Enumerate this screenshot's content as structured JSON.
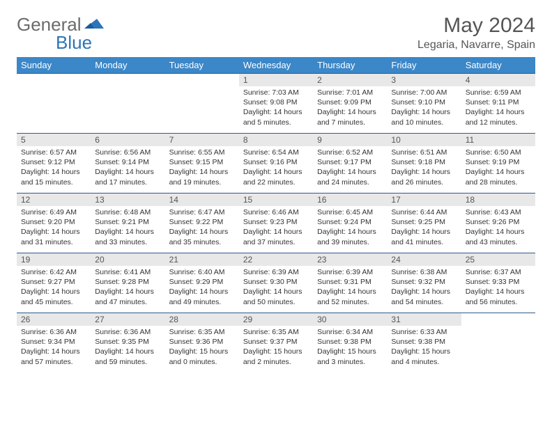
{
  "brand": {
    "part1": "General",
    "part2": "Blue"
  },
  "title": "May 2024",
  "location": "Legaria, Navarre, Spain",
  "weekdays": [
    "Sunday",
    "Monday",
    "Tuesday",
    "Wednesday",
    "Thursday",
    "Friday",
    "Saturday"
  ],
  "colors": {
    "header_bg": "#3b87c8",
    "header_text": "#ffffff",
    "daynum_bg": "#e8e8e8",
    "text": "#333333",
    "border": "#2d5a8a",
    "brand_grey": "#6b6b6b",
    "brand_blue": "#2d74b8"
  },
  "rows": [
    [
      null,
      null,
      null,
      {
        "n": "1",
        "sr": "7:03 AM",
        "ss": "9:08 PM",
        "dl": "14 hours and 5 minutes."
      },
      {
        "n": "2",
        "sr": "7:01 AM",
        "ss": "9:09 PM",
        "dl": "14 hours and 7 minutes."
      },
      {
        "n": "3",
        "sr": "7:00 AM",
        "ss": "9:10 PM",
        "dl": "14 hours and 10 minutes."
      },
      {
        "n": "4",
        "sr": "6:59 AM",
        "ss": "9:11 PM",
        "dl": "14 hours and 12 minutes."
      }
    ],
    [
      {
        "n": "5",
        "sr": "6:57 AM",
        "ss": "9:12 PM",
        "dl": "14 hours and 15 minutes."
      },
      {
        "n": "6",
        "sr": "6:56 AM",
        "ss": "9:14 PM",
        "dl": "14 hours and 17 minutes."
      },
      {
        "n": "7",
        "sr": "6:55 AM",
        "ss": "9:15 PM",
        "dl": "14 hours and 19 minutes."
      },
      {
        "n": "8",
        "sr": "6:54 AM",
        "ss": "9:16 PM",
        "dl": "14 hours and 22 minutes."
      },
      {
        "n": "9",
        "sr": "6:52 AM",
        "ss": "9:17 PM",
        "dl": "14 hours and 24 minutes."
      },
      {
        "n": "10",
        "sr": "6:51 AM",
        "ss": "9:18 PM",
        "dl": "14 hours and 26 minutes."
      },
      {
        "n": "11",
        "sr": "6:50 AM",
        "ss": "9:19 PM",
        "dl": "14 hours and 28 minutes."
      }
    ],
    [
      {
        "n": "12",
        "sr": "6:49 AM",
        "ss": "9:20 PM",
        "dl": "14 hours and 31 minutes."
      },
      {
        "n": "13",
        "sr": "6:48 AM",
        "ss": "9:21 PM",
        "dl": "14 hours and 33 minutes."
      },
      {
        "n": "14",
        "sr": "6:47 AM",
        "ss": "9:22 PM",
        "dl": "14 hours and 35 minutes."
      },
      {
        "n": "15",
        "sr": "6:46 AM",
        "ss": "9:23 PM",
        "dl": "14 hours and 37 minutes."
      },
      {
        "n": "16",
        "sr": "6:45 AM",
        "ss": "9:24 PM",
        "dl": "14 hours and 39 minutes."
      },
      {
        "n": "17",
        "sr": "6:44 AM",
        "ss": "9:25 PM",
        "dl": "14 hours and 41 minutes."
      },
      {
        "n": "18",
        "sr": "6:43 AM",
        "ss": "9:26 PM",
        "dl": "14 hours and 43 minutes."
      }
    ],
    [
      {
        "n": "19",
        "sr": "6:42 AM",
        "ss": "9:27 PM",
        "dl": "14 hours and 45 minutes."
      },
      {
        "n": "20",
        "sr": "6:41 AM",
        "ss": "9:28 PM",
        "dl": "14 hours and 47 minutes."
      },
      {
        "n": "21",
        "sr": "6:40 AM",
        "ss": "9:29 PM",
        "dl": "14 hours and 49 minutes."
      },
      {
        "n": "22",
        "sr": "6:39 AM",
        "ss": "9:30 PM",
        "dl": "14 hours and 50 minutes."
      },
      {
        "n": "23",
        "sr": "6:39 AM",
        "ss": "9:31 PM",
        "dl": "14 hours and 52 minutes."
      },
      {
        "n": "24",
        "sr": "6:38 AM",
        "ss": "9:32 PM",
        "dl": "14 hours and 54 minutes."
      },
      {
        "n": "25",
        "sr": "6:37 AM",
        "ss": "9:33 PM",
        "dl": "14 hours and 56 minutes."
      }
    ],
    [
      {
        "n": "26",
        "sr": "6:36 AM",
        "ss": "9:34 PM",
        "dl": "14 hours and 57 minutes."
      },
      {
        "n": "27",
        "sr": "6:36 AM",
        "ss": "9:35 PM",
        "dl": "14 hours and 59 minutes."
      },
      {
        "n": "28",
        "sr": "6:35 AM",
        "ss": "9:36 PM",
        "dl": "15 hours and 0 minutes."
      },
      {
        "n": "29",
        "sr": "6:35 AM",
        "ss": "9:37 PM",
        "dl": "15 hours and 2 minutes."
      },
      {
        "n": "30",
        "sr": "6:34 AM",
        "ss": "9:38 PM",
        "dl": "15 hours and 3 minutes."
      },
      {
        "n": "31",
        "sr": "6:33 AM",
        "ss": "9:38 PM",
        "dl": "15 hours and 4 minutes."
      },
      null
    ]
  ],
  "labels": {
    "sunrise": "Sunrise:",
    "sunset": "Sunset:",
    "daylight": "Daylight:"
  }
}
